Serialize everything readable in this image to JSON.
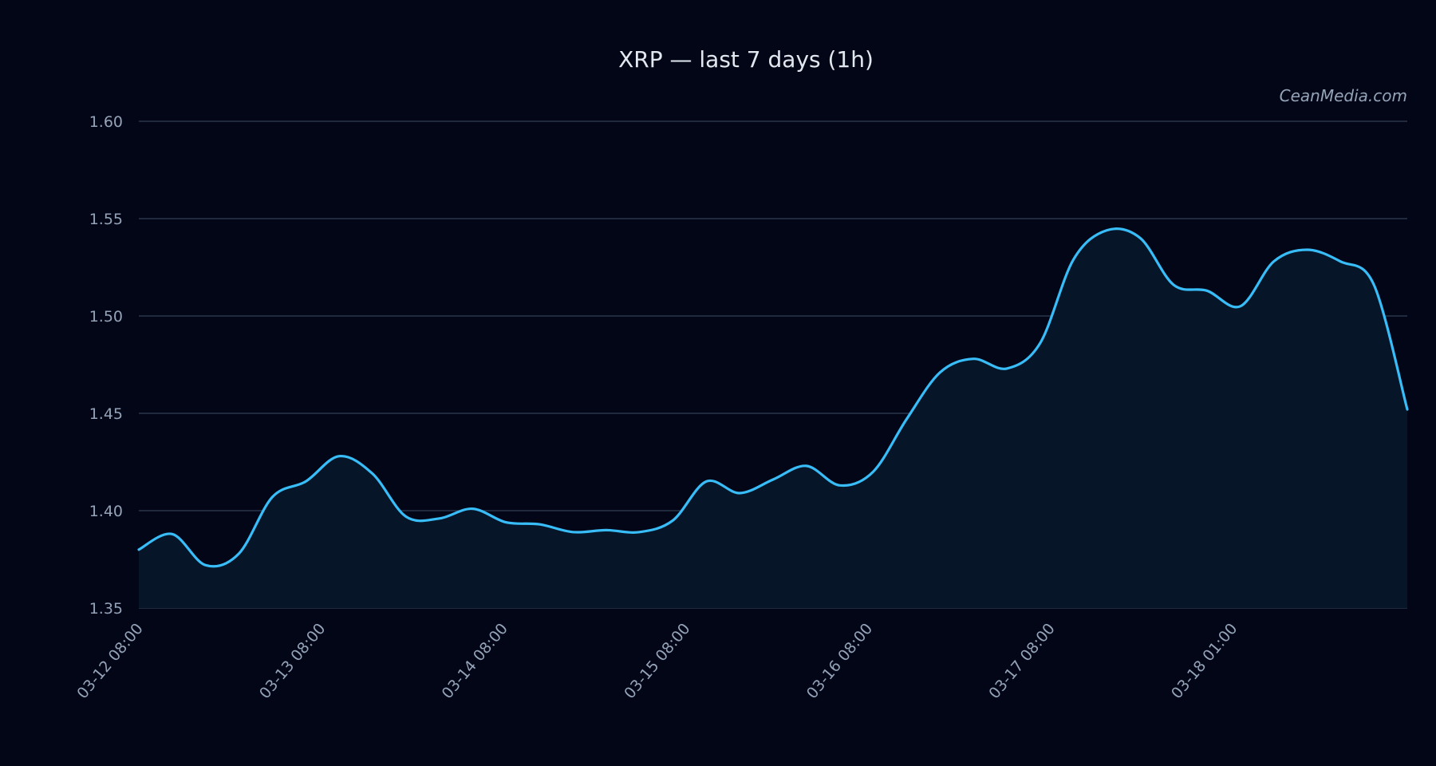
{
  "chart_data": {
    "type": "area",
    "title": "XRP — last 7 days (1h)",
    "watermark": "CeanMedia.com",
    "xlabel": "",
    "ylabel": "",
    "ylim": [
      1.35,
      1.6
    ],
    "yticks": [
      "1.35",
      "1.40",
      "1.45",
      "1.50",
      "1.55",
      "1.60"
    ],
    "xticks": [
      "03-12 08:00",
      "03-13 08:00",
      "03-14 08:00",
      "03-15 08:00",
      "03-16 08:00",
      "03-17 08:00",
      "03-18 01:00"
    ],
    "grid": true,
    "colors": {
      "line": "#38bdf8",
      "area": "#071528",
      "background": "#020617",
      "grid": "#334155"
    },
    "series": [
      {
        "x": [
          "03-12 08:00",
          "03-12 12:00",
          "03-12 16:00",
          "03-12 20:00",
          "03-13 00:00",
          "03-13 04:00",
          "03-13 08:00",
          "03-13 12:00",
          "03-13 16:00",
          "03-13 20:00",
          "03-14 00:00",
          "03-14 04:00",
          "03-14 08:00",
          "03-14 12:00",
          "03-14 16:00",
          "03-14 20:00",
          "03-15 00:00",
          "03-15 04:00",
          "03-15 08:00",
          "03-15 12:00",
          "03-15 16:00",
          "03-15 20:00",
          "03-16 00:00",
          "03-16 04:00",
          "03-16 08:00",
          "03-16 12:00",
          "03-16 16:00",
          "03-16 20:00",
          "03-17 00:00",
          "03-17 04:00",
          "03-17 08:00",
          "03-17 12:00",
          "03-17 16:00",
          "03-17 20:00",
          "03-18 00:00",
          "03-18 04:00",
          "03-18 08:00",
          "03-18 11:00",
          "03-18 14:00"
        ],
        "values": [
          1.38,
          1.388,
          1.372,
          1.378,
          1.407,
          1.415,
          1.428,
          1.419,
          1.397,
          1.396,
          1.401,
          1.394,
          1.393,
          1.389,
          1.39,
          1.389,
          1.395,
          1.415,
          1.409,
          1.416,
          1.423,
          1.413,
          1.42,
          1.447,
          1.471,
          1.478,
          1.473,
          1.486,
          1.529,
          1.544,
          1.54,
          1.516,
          1.513,
          1.505,
          1.528,
          1.534,
          1.528,
          1.516,
          1.452
        ]
      }
    ]
  }
}
